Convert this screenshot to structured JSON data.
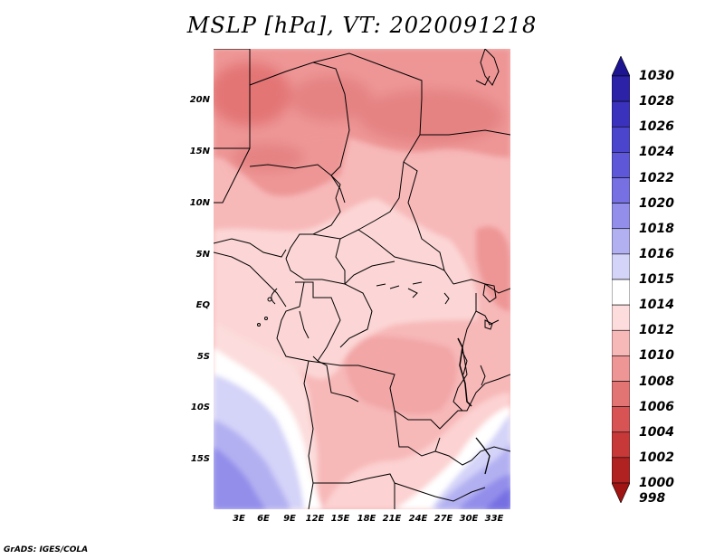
{
  "title": "MSLP [hPa], VT: 2020091218",
  "footer": "GrADS: IGES/COLA",
  "map": {
    "lat_labels": [
      "20N",
      "15N",
      "10N",
      "5N",
      "EQ",
      "5S",
      "10S",
      "15S"
    ],
    "lon_labels": [
      "3E",
      "6E",
      "9E",
      "12E",
      "15E",
      "18E",
      "21E",
      "24E",
      "27E",
      "30E",
      "33E"
    ],
    "region": "Central Africa",
    "field": "mean sea level pressure"
  },
  "colorbar": {
    "levels": [
      "1030",
      "1028",
      "1026",
      "1024",
      "1022",
      "1020",
      "1018",
      "1016",
      "1015",
      "1014",
      "1012",
      "1010",
      "1008",
      "1006",
      "1004",
      "1002",
      "1000",
      "998"
    ],
    "colors": [
      "#1c1490",
      "#2b22a8",
      "#3a32bc",
      "#4b44cc",
      "#5e58d8",
      "#7670e2",
      "#938eea",
      "#b3b0f1",
      "#d4d3f8",
      "#ffffff",
      "#fcdcdc",
      "#f7b8b8",
      "#ee9696",
      "#e37474",
      "#d85454",
      "#c73838",
      "#b02222",
      "#a01414"
    ]
  }
}
